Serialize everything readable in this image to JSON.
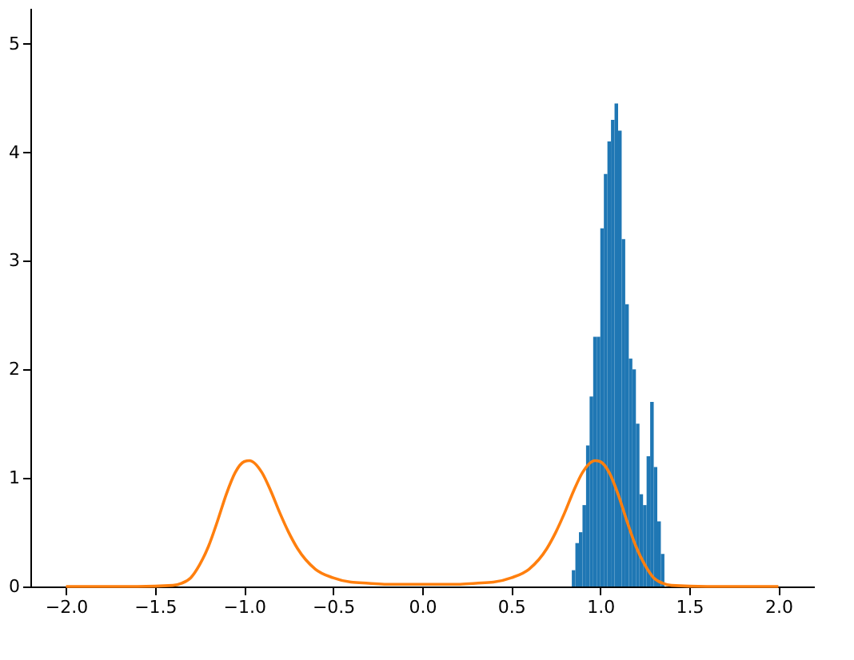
{
  "chart_data": {
    "type": "histogram",
    "xlim": [
      -2.2,
      2.2
    ],
    "ylim": [
      0,
      5.33
    ],
    "xticks": [
      {
        "value": -2.0,
        "label": "−2.0"
      },
      {
        "value": -1.5,
        "label": "−1.5"
      },
      {
        "value": -1.0,
        "label": "−1.0"
      },
      {
        "value": -0.5,
        "label": "−0.5"
      },
      {
        "value": 0,
        "label": "0.0"
      },
      {
        "value": 0.5,
        "label": "0.5"
      },
      {
        "value": 1.0,
        "label": "1.0"
      },
      {
        "value": 1.5,
        "label": "1.5"
      },
      {
        "value": 2.0,
        "label": "2.0"
      }
    ],
    "yticks": [
      0,
      1,
      2,
      3,
      4,
      5
    ],
    "grid": false,
    "series": [
      {
        "color": "#1f77b4",
        "bins": [
          0.84,
          0.86,
          0.88,
          0.9,
          0.92,
          0.94,
          0.96,
          0.98,
          1.0,
          1.02,
          1.04,
          1.06,
          1.08,
          1.1,
          1.12,
          1.14,
          1.16,
          1.18,
          1.2,
          1.22,
          1.24,
          1.26,
          1.28,
          1.3,
          1.32,
          1.34,
          1.36
        ],
        "values": [
          0.15,
          0.4,
          0.5,
          0.75,
          1.3,
          1.75,
          2.3,
          2.3,
          3.3,
          3.8,
          4.1,
          4.3,
          4.45,
          4.2,
          3.2,
          2.6,
          2.1,
          2.0,
          1.5,
          0.85,
          0.75,
          1.2,
          1.7,
          1.1,
          0.6,
          0.3
        ]
      },
      {
        "type": "line",
        "color": "#ff7f0e",
        "x": [
          -2,
          -1.6,
          -1.4,
          -1.35,
          -1.3,
          -1.25,
          -1.2,
          -1.15,
          -1.1,
          -1.05,
          -1.0,
          -0.97,
          -0.9,
          -0.85,
          -0.8,
          -0.75,
          -0.7,
          -0.6,
          -0.5,
          -0.4,
          -0.3,
          -0.2,
          0,
          0.2,
          0.3,
          0.4,
          0.5,
          0.6,
          0.7,
          0.75,
          0.8,
          0.85,
          0.9,
          0.97,
          1.0,
          1.05,
          1.1,
          1.15,
          1.2,
          1.25,
          1.3,
          1.35,
          1.4,
          1.6,
          2
        ],
        "values": [
          0,
          0,
          0.01,
          0.03,
          0.08,
          0.2,
          0.37,
          0.6,
          0.85,
          1.05,
          1.15,
          1.16,
          1.05,
          0.88,
          0.68,
          0.5,
          0.35,
          0.16,
          0.08,
          0.04,
          0.03,
          0.02,
          0.02,
          0.02,
          0.03,
          0.04,
          0.08,
          0.16,
          0.35,
          0.5,
          0.68,
          0.88,
          1.05,
          1.16,
          1.15,
          1.05,
          0.85,
          0.6,
          0.37,
          0.2,
          0.08,
          0.03,
          0.01,
          0,
          0
        ]
      }
    ]
  }
}
